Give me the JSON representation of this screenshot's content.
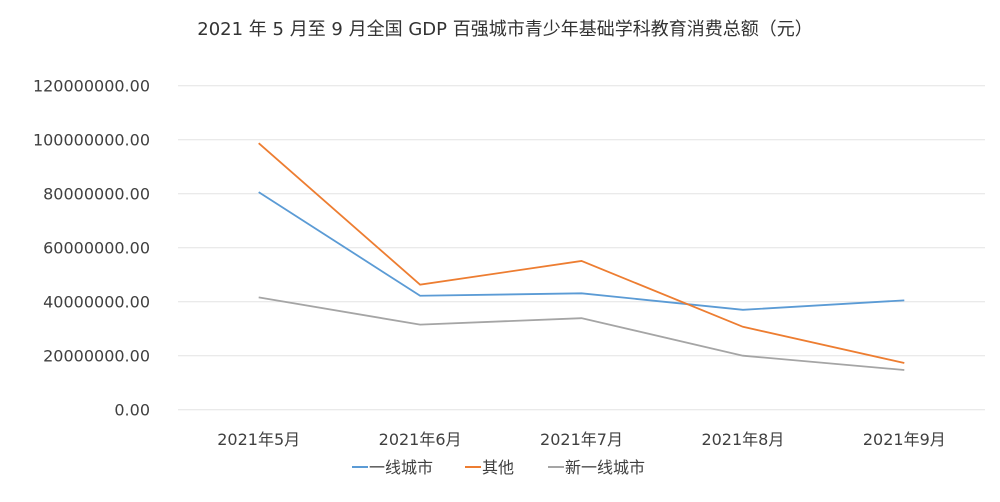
{
  "chart_data": {
    "type": "line",
    "title": "2021 年 5 月至 9 月全国 GDP 百强城市青少年基础学科教育消费总额（元）",
    "xlabel": "",
    "ylabel": "",
    "categories": [
      "2021年5月",
      "2021年6月",
      "2021年7月",
      "2021年8月",
      "2021年9月"
    ],
    "ylim": [
      0,
      120000000
    ],
    "yticks": [
      "0.00",
      "20000000.00",
      "40000000.00",
      "60000000.00",
      "80000000.00",
      "100000000.00",
      "120000000.00"
    ],
    "grid": true,
    "legend_position": "bottom",
    "series": [
      {
        "name": "一线城市",
        "color": "#5b9bd5",
        "values": [
          80600000,
          42200000,
          43100000,
          37000000,
          40500000
        ]
      },
      {
        "name": "其他",
        "color": "#ed7d31",
        "values": [
          98700000,
          46300000,
          55100000,
          30700000,
          17300000
        ]
      },
      {
        "name": "新一线城市",
        "color": "#a5a5a5",
        "values": [
          41600000,
          31500000,
          33900000,
          20000000,
          14700000
        ]
      }
    ]
  }
}
